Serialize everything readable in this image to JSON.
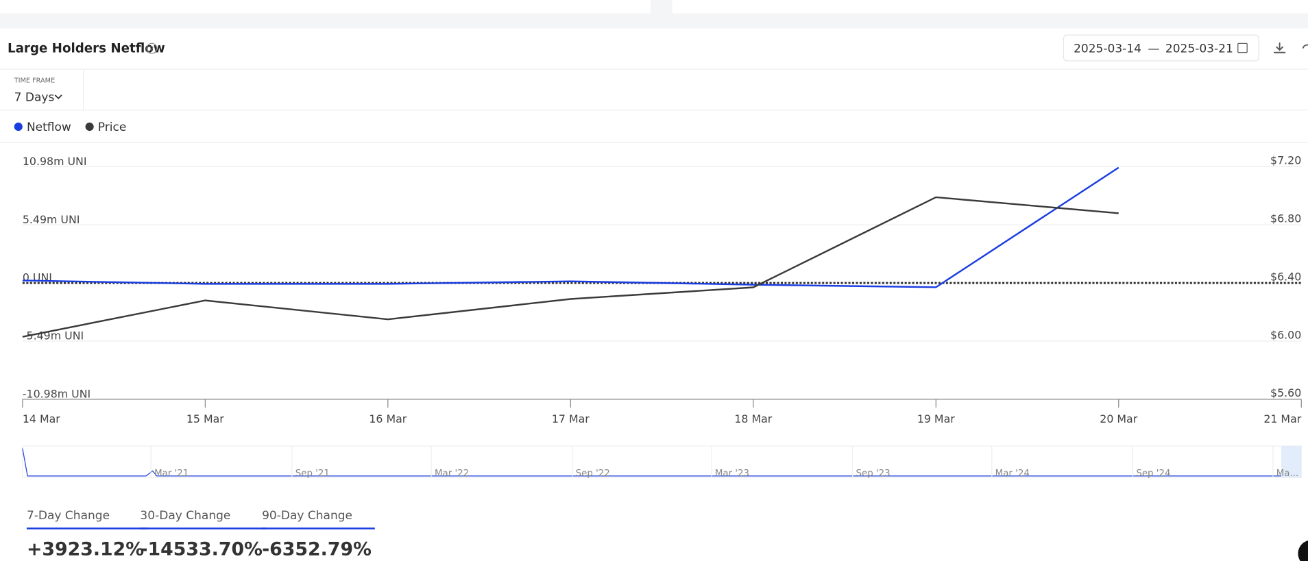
{
  "header": {
    "title": "Large Holders Netflow",
    "date_from": "2025-03-14",
    "date_sep": "—",
    "date_to": "2025-03-21"
  },
  "timeframe": {
    "label": "TIME FRAME",
    "value": "7 Days"
  },
  "chart_data": {
    "type": "line",
    "categories": [
      "14 Mar",
      "15 Mar",
      "16 Mar",
      "17 Mar",
      "18 Mar",
      "19 Mar",
      "20 Mar",
      "21 Mar"
    ],
    "series": [
      {
        "name": "Netflow",
        "color": "#1a3de0",
        "values": [
          0.24,
          -0.08,
          -0.08,
          0.16,
          -0.16,
          -0.4,
          10.9,
          null
        ]
      },
      {
        "name": "Price",
        "color": "#3a3a3a",
        "axis": "y2",
        "values": [
          6.03,
          6.28,
          6.15,
          6.29,
          6.37,
          6.99,
          6.88,
          null
        ]
      }
    ],
    "ylim": [
      -10.98,
      10.98
    ],
    "yticks": [
      {
        "value": -10.98,
        "label": "-10.98m UNI"
      },
      {
        "value": -5.49,
        "label": "-5.49m UNI"
      },
      {
        "value": 0,
        "label": "0 UNI"
      },
      {
        "value": 5.49,
        "label": "5.49m UNI"
      },
      {
        "value": 10.98,
        "label": "10.98m UNI"
      }
    ],
    "y2lim": [
      5.6,
      7.2
    ],
    "y2ticks": [
      {
        "value": 5.6,
        "label": "$5.60"
      },
      {
        "value": 6.0,
        "label": "$6.00"
      },
      {
        "value": 6.4,
        "label": "$6.40"
      },
      {
        "value": 6.8,
        "label": "$6.80"
      },
      {
        "value": 7.2,
        "label": "$7.20"
      }
    ],
    "grid": true,
    "legend": "top-left"
  },
  "navigator": {
    "labels": [
      "Mar '21",
      "Sep '21",
      "Mar '22",
      "Sep '22",
      "Mar '23",
      "Sep '23",
      "Mar '24",
      "Sep '24",
      "Ma..."
    ]
  },
  "changes": [
    {
      "label": "7-Day Change",
      "value": "+3923.12%"
    },
    {
      "label": "30-Day Change",
      "value": "-14533.70%"
    },
    {
      "label": "90-Day Change",
      "value": "-6352.79%"
    }
  ]
}
